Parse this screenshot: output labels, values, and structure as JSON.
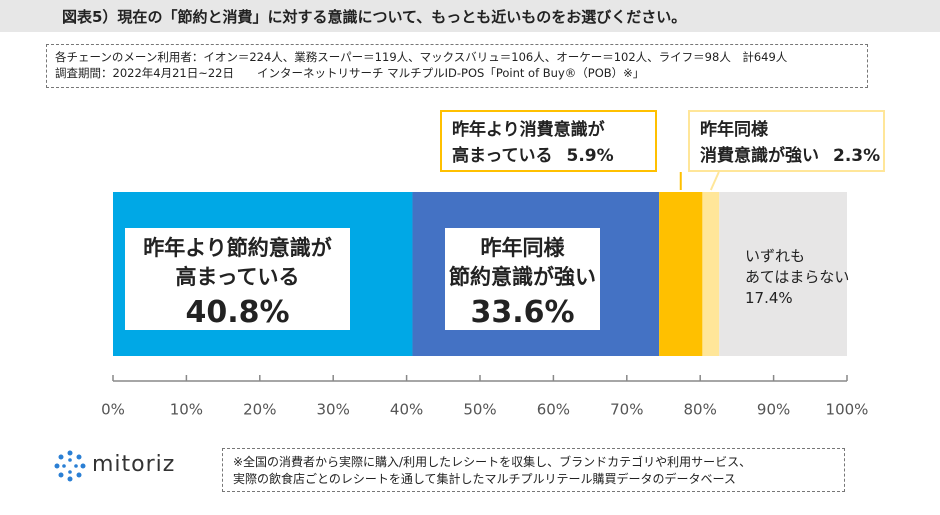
{
  "title": "図表5）現在の「節約と消費」に対する意識について、もっとも近いものをお選びください。",
  "info": {
    "line1": "各チェーンのメーン利用者：イオン＝224人、業務スーパー＝119人、マックスバリュ＝106人、オーケー＝102人、ライフ＝98人　計649人",
    "line2": "調査期間：2022年4月21日~22日　　インターネットリサーチ マルチプルID-POS「Point of Buy®（POB）※」"
  },
  "chart_data": {
    "type": "stacked-bar",
    "categories": [
      "昨年より節約意識が\n高まっている",
      "昨年同様\n節約意識が強い",
      "昨年より消費意識が\n高まっている",
      "昨年同様\n消費意識が強い",
      "いずれも\nあてはまらない"
    ],
    "values": [
      40.8,
      33.6,
      5.9,
      2.3,
      17.4
    ],
    "value_labels": [
      "40.8%",
      "33.6%",
      "5.9%",
      "2.3%",
      "17.4%"
    ],
    "colors": [
      "#00a8e6",
      "#4472c4",
      "#ffc000",
      "#ffe699",
      "#e7e6e6"
    ],
    "xlim": [
      0,
      100
    ],
    "xticks": [
      {
        "value": 0,
        "label": "0%"
      },
      {
        "value": 10,
        "label": "10%"
      },
      {
        "value": 20,
        "label": "20%"
      },
      {
        "value": 30,
        "label": "30%"
      },
      {
        "value": 40,
        "label": "40%"
      },
      {
        "value": 50,
        "label": "50%"
      },
      {
        "value": 60,
        "label": "60%"
      },
      {
        "value": 70,
        "label": "70%"
      },
      {
        "value": 80,
        "label": "80%"
      },
      {
        "value": 90,
        "label": "90%"
      },
      {
        "value": 100,
        "label": "100%"
      }
    ]
  },
  "logo": "mitoriz",
  "note": {
    "line1": "※全国の消費者から実際に購入/利用したレシートを収集し、ブランドカテゴリや利用サービス、",
    "line2": "実際の飲食店ごとのレシートを通して集計したマルチプルリテール購買データのデータベース"
  }
}
